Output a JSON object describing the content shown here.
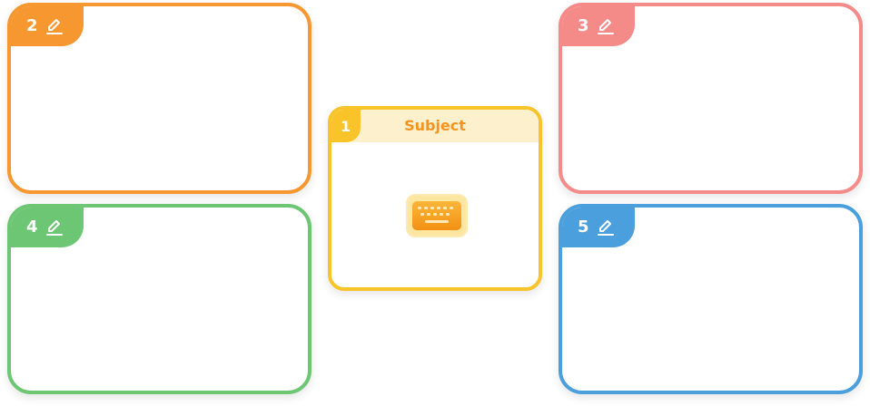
{
  "center_card": {
    "number": "1",
    "subject": "Subject",
    "icon": "keyboard-icon",
    "color": "#f8c42a",
    "header_bg": "#fdf0cd",
    "subject_color": "#f5941d"
  },
  "cards": [
    {
      "number": "2",
      "color": "#f7972f",
      "icon": "pencil-icon"
    },
    {
      "number": "3",
      "color": "#f48b89",
      "icon": "pencil-icon"
    },
    {
      "number": "4",
      "color": "#6dc673",
      "icon": "pencil-icon"
    },
    {
      "number": "5",
      "color": "#4a9fdc",
      "icon": "pencil-icon"
    }
  ]
}
